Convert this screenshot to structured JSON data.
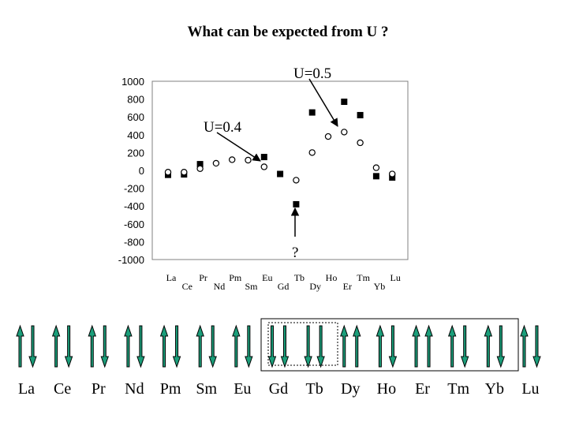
{
  "title": "What can be expected from U ?",
  "colors": {
    "arrow_fill": "#1b9e7a",
    "arrow_stroke": "#000000",
    "plot_bg": "#ffffff",
    "plot_border": "#808080"
  },
  "chart_data": {
    "type": "scatter",
    "title": "",
    "xlabel": "",
    "ylabel": "",
    "ylim": [
      -1000,
      1000
    ],
    "yticks": [
      1000,
      800,
      600,
      400,
      200,
      0,
      -200,
      -400,
      -600,
      -800,
      -1000
    ],
    "grid": false,
    "legend": "none",
    "categories": [
      "La",
      "Ce",
      "Pr",
      "Nd",
      "Pm",
      "Sm",
      "Eu",
      "Gd",
      "Tb",
      "Dy",
      "Ho",
      "Er",
      "Tm",
      "Yb",
      "Lu"
    ],
    "series": [
      {
        "marker": "filled-square",
        "values": [
          -50,
          -45,
          70,
          null,
          null,
          null,
          150,
          -40,
          -380,
          650,
          null,
          770,
          620,
          -65,
          -80
        ]
      },
      {
        "marker": "open-circle",
        "values": [
          -20,
          -20,
          20,
          80,
          120,
          115,
          40,
          null,
          -110,
          200,
          380,
          430,
          310,
          30,
          -40
        ]
      }
    ],
    "annotations": [
      {
        "text": "U=0.5"
      },
      {
        "text": "U=0.4"
      },
      {
        "text": "?"
      }
    ]
  },
  "elements": [
    {
      "symbol": "La",
      "arrows": [
        "up",
        "down"
      ]
    },
    {
      "symbol": "Ce",
      "arrows": [
        "up",
        "down"
      ]
    },
    {
      "symbol": "Pr",
      "arrows": [
        "up",
        "down"
      ]
    },
    {
      "symbol": "Nd",
      "arrows": [
        "up",
        "down"
      ]
    },
    {
      "symbol": "Pm",
      "arrows": [
        "up",
        "down"
      ]
    },
    {
      "symbol": "Sm",
      "arrows": [
        "up",
        "down"
      ]
    },
    {
      "symbol": "Eu",
      "arrows": [
        "up",
        "down"
      ]
    },
    {
      "symbol": "Gd",
      "arrows": [
        "down",
        "down"
      ]
    },
    {
      "symbol": "Tb",
      "arrows": [
        "down",
        "down"
      ]
    },
    {
      "symbol": "Dy",
      "arrows": [
        "up",
        "up"
      ]
    },
    {
      "symbol": "Ho",
      "arrows": [
        "up",
        "down"
      ]
    },
    {
      "symbol": "Er",
      "arrows": [
        "up",
        "up"
      ]
    },
    {
      "symbol": "Tm",
      "arrows": [
        "up",
        "down"
      ]
    },
    {
      "symbol": "Yb",
      "arrows": [
        "up",
        "down"
      ]
    },
    {
      "symbol": "Lu",
      "arrows": [
        "up",
        "down"
      ]
    }
  ]
}
